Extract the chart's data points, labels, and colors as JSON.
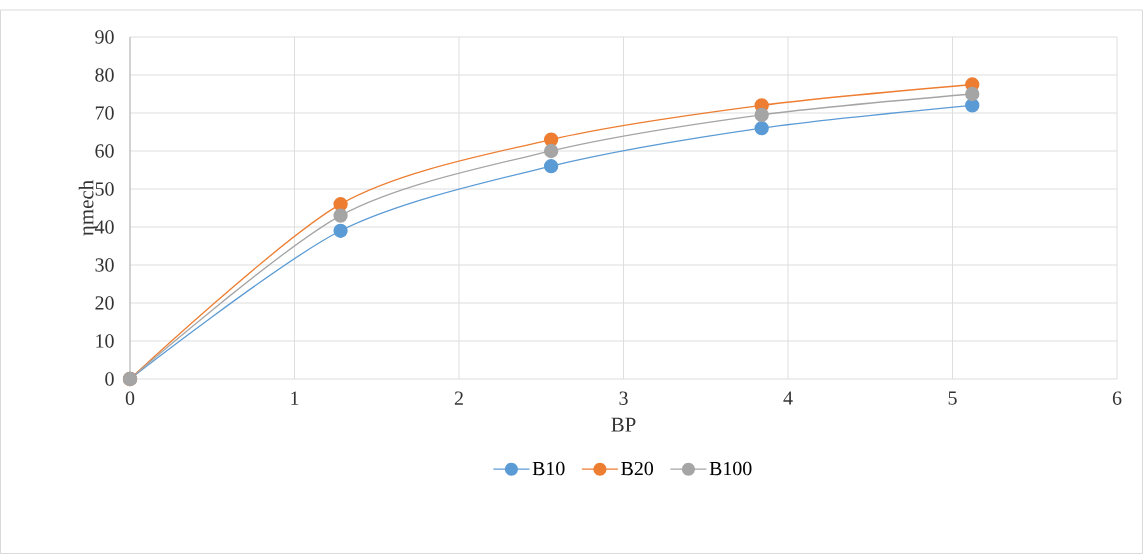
{
  "chart_data": {
    "type": "line",
    "xlabel": "BP",
    "ylabel": "ηmech",
    "x": [
      0,
      1.28,
      2.56,
      3.84,
      5.12
    ],
    "series": [
      {
        "name": "B10",
        "color": "#5b9bd5",
        "values": [
          0,
          39,
          56,
          66,
          72
        ]
      },
      {
        "name": "B20",
        "color": "#ed7d31",
        "values": [
          0,
          46,
          63,
          72,
          77.5
        ]
      },
      {
        "name": "B100",
        "color": "#a5a5a5",
        "values": [
          0,
          43,
          60,
          69.5,
          75
        ]
      }
    ],
    "xlim": [
      0,
      6
    ],
    "xticks": [
      0,
      1,
      2,
      3,
      4,
      5,
      6
    ],
    "ylim": [
      0,
      90
    ],
    "yticks": [
      0,
      10,
      20,
      30,
      40,
      50,
      60,
      70,
      80,
      90
    ],
    "grid": true,
    "legend": "bottom",
    "marker": "circle",
    "line_style": "solid"
  }
}
